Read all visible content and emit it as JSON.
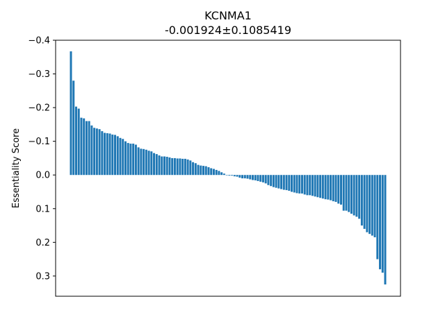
{
  "chart_data": {
    "type": "bar",
    "title": "KCNMA1",
    "subtitle": "-0.001924±0.1085419",
    "xlabel": "",
    "ylabel": "Essentiality Score",
    "y_inverted": true,
    "ylim": [
      0.36,
      -0.4
    ],
    "yticks": [
      -0.4,
      -0.3,
      -0.2,
      -0.1,
      0.0,
      0.1,
      0.2,
      0.3
    ],
    "ytick_labels": [
      "−0.4",
      "−0.3",
      "−0.2",
      "−0.1",
      "0.0",
      "0.1",
      "0.2",
      "0.3"
    ],
    "grid": false,
    "bar_color": "#1f77b4",
    "values": [
      -0.367,
      -0.28,
      -0.203,
      -0.197,
      -0.17,
      -0.168,
      -0.16,
      -0.16,
      -0.147,
      -0.14,
      -0.138,
      -0.136,
      -0.13,
      -0.125,
      -0.124,
      -0.123,
      -0.12,
      -0.119,
      -0.115,
      -0.11,
      -0.107,
      -0.1,
      -0.095,
      -0.093,
      -0.093,
      -0.09,
      -0.082,
      -0.078,
      -0.077,
      -0.075,
      -0.072,
      -0.07,
      -0.065,
      -0.062,
      -0.058,
      -0.055,
      -0.055,
      -0.054,
      -0.052,
      -0.05,
      -0.05,
      -0.049,
      -0.049,
      -0.048,
      -0.048,
      -0.046,
      -0.043,
      -0.038,
      -0.035,
      -0.03,
      -0.028,
      -0.027,
      -0.026,
      -0.023,
      -0.02,
      -0.018,
      -0.015,
      -0.012,
      -0.008,
      -0.004,
      0.001,
      0.002,
      0.002,
      0.004,
      0.005,
      0.008,
      0.01,
      0.01,
      0.011,
      0.013,
      0.015,
      0.016,
      0.018,
      0.02,
      0.022,
      0.025,
      0.03,
      0.033,
      0.036,
      0.038,
      0.04,
      0.042,
      0.044,
      0.045,
      0.047,
      0.05,
      0.052,
      0.054,
      0.055,
      0.055,
      0.058,
      0.06,
      0.06,
      0.062,
      0.064,
      0.066,
      0.068,
      0.07,
      0.072,
      0.073,
      0.075,
      0.078,
      0.08,
      0.085,
      0.088,
      0.106,
      0.106,
      0.11,
      0.115,
      0.12,
      0.124,
      0.13,
      0.15,
      0.16,
      0.17,
      0.175,
      0.18,
      0.185,
      0.25,
      0.28,
      0.29,
      0.325
    ]
  }
}
